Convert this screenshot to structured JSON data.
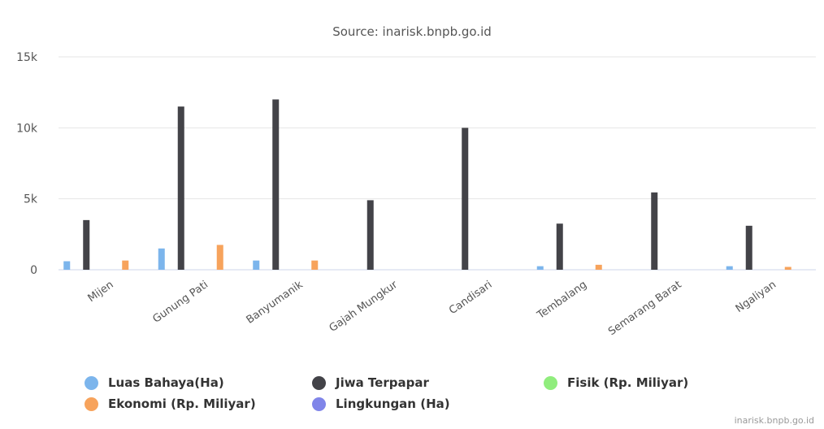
{
  "chart_data": {
    "type": "bar",
    "subtitle": "Source: inarisk.bnpb.go.id",
    "credit": "inarisk.bnpb.go.id",
    "categories": [
      "Mijen",
      "Gunung Pati",
      "Banyumanik",
      "Gajah Mungkur",
      "Candisari",
      "Tembalang",
      "Semarang Barat",
      "Ngaliyan"
    ],
    "ylim": [
      0,
      15000
    ],
    "yticks": [
      0,
      5000,
      10000,
      15000
    ],
    "ytick_labels": [
      "0",
      "5k",
      "10k",
      "15k"
    ],
    "grid": true,
    "legend_position": "bottom",
    "series": [
      {
        "name": "Luas Bahaya(Ha)",
        "color": "#7cb5ec",
        "values": [
          600,
          1500,
          650,
          0,
          0,
          250,
          0,
          250
        ]
      },
      {
        "name": "Jiwa Terpapar",
        "color": "#434348",
        "values": [
          3500,
          11500,
          12000,
          4900,
          10000,
          3250,
          5450,
          3100
        ]
      },
      {
        "name": "Fisik (Rp. Miliyar)",
        "color": "#90ed7d",
        "values": [
          0,
          0,
          0,
          0,
          0,
          0,
          0,
          0
        ]
      },
      {
        "name": "Ekonomi (Rp. Miliyar)",
        "color": "#f7a35c",
        "values": [
          650,
          1750,
          650,
          0,
          0,
          350,
          0,
          200
        ]
      },
      {
        "name": "Lingkungan (Ha)",
        "color": "#8085e9",
        "values": [
          0,
          0,
          0,
          0,
          0,
          0,
          0,
          0
        ]
      }
    ]
  }
}
